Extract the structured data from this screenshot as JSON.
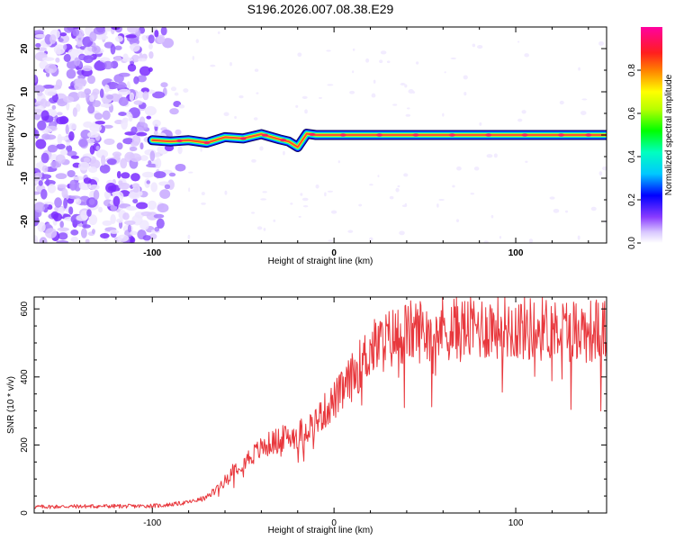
{
  "page": {
    "title": "S196.2026.007.08.38.E29"
  },
  "chart_data": [
    {
      "type": "heatmap",
      "title": "S196.2026.007.08.38.E29",
      "xlabel": "Height of straight line (km)",
      "ylabel": "Frequency (Hz)",
      "xlim": [
        -165,
        150
      ],
      "ylim": [
        -25,
        25
      ],
      "xticks": [
        "-100",
        "0",
        "100"
      ],
      "xtick_values": [
        -100,
        0,
        100
      ],
      "yticks": [
        "20",
        "10",
        "0",
        "-10",
        "-20"
      ],
      "ytick_values": [
        20,
        10,
        0,
        -10,
        -20
      ],
      "ridge": {
        "description_points_x": [
          -100,
          -90,
          -80,
          -70,
          -60,
          -50,
          -40,
          -30,
          -25,
          -20,
          -15,
          -10,
          0,
          20,
          60,
          100,
          150
        ],
        "description_points_y": [
          -1.2,
          -1.5,
          -1.2,
          -1.8,
          -0.5,
          -0.8,
          0.2,
          -1.0,
          -1.5,
          -2.8,
          0.3,
          0.0,
          0.0,
          0.0,
          0.0,
          0.0,
          0.0
        ]
      },
      "colorbar": {
        "label": "Normalized spectral amplitude",
        "ticks": [
          "0.0",
          "0.2",
          "0.4",
          "0.6",
          "0.8"
        ],
        "tick_values": [
          0.0,
          0.2,
          0.4,
          0.6,
          0.8
        ],
        "range": [
          0.0,
          1.0
        ]
      }
    },
    {
      "type": "line",
      "xlabel": "Height of straight line (km)",
      "ylabel": "SNR (10 * v/v)",
      "xlim": [
        -165,
        150
      ],
      "ylim": [
        0,
        635
      ],
      "xticks": [
        "-100",
        "0",
        "100"
      ],
      "xtick_values": [
        -100,
        0,
        100
      ],
      "yticks": [
        "0",
        "200",
        "400",
        "600"
      ],
      "ytick_values": [
        0,
        200,
        400,
        600
      ],
      "series": [
        {
          "name": "SNR",
          "color": "#e8383d",
          "x": [
            -165,
            -150,
            -130,
            -110,
            -95,
            -85,
            -80,
            -75,
            -70,
            -65,
            -60,
            -55,
            -50,
            -45,
            -40,
            -35,
            -30,
            -25,
            -20,
            -15,
            -10,
            -5,
            0,
            5,
            10,
            15,
            20,
            30,
            40,
            50,
            60,
            70,
            80,
            90,
            100,
            110,
            120,
            130,
            140,
            150
          ],
          "values": [
            18,
            19,
            20,
            20,
            22,
            28,
            32,
            38,
            45,
            70,
            95,
            130,
            150,
            170,
            190,
            205,
            215,
            225,
            230,
            250,
            270,
            300,
            330,
            360,
            400,
            440,
            480,
            510,
            530,
            540,
            545,
            540,
            545,
            550,
            545,
            540,
            545,
            540,
            535,
            540
          ]
        }
      ]
    }
  ]
}
